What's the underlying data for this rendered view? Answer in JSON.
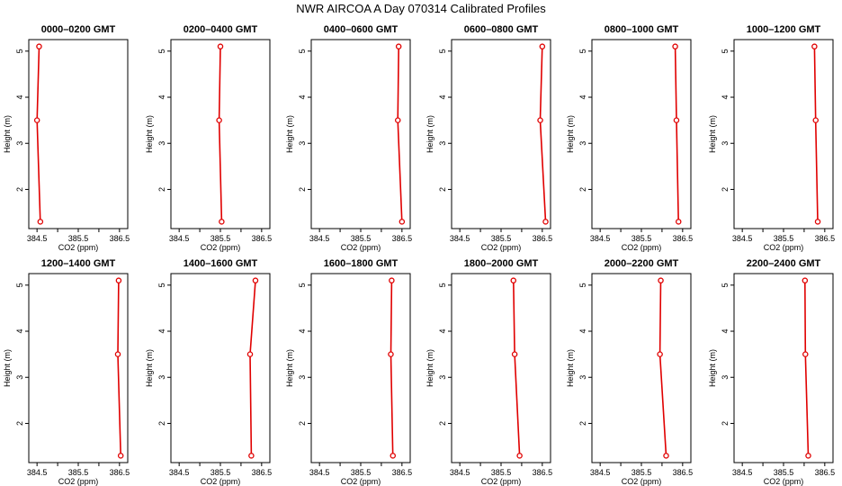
{
  "title": "NWR AIRCOA A  Day 070314  Calibrated Profiles",
  "colors": {
    "profile": "#e00000",
    "axis": "#000000",
    "background": "#ffffff"
  },
  "axes": {
    "xlabel": "CO2 (ppm)",
    "ylabel": "Height (m)",
    "xlim": [
      384.3,
      386.7
    ],
    "ylim": [
      1.15,
      5.25
    ],
    "xticks": [
      384.5,
      385.0,
      385.5,
      386.0,
      386.5
    ],
    "xtick_labels": [
      "384.5",
      "",
      "385.5",
      "",
      "386.5"
    ],
    "yticks": [
      2,
      3,
      4,
      5
    ],
    "ytick_labels": [
      "2",
      "3",
      "4",
      "5"
    ]
  },
  "chart_data": [
    {
      "type": "line",
      "title": "0000–0200 GMT",
      "heights": [
        5.1,
        3.5,
        1.3
      ],
      "values": [
        384.55,
        384.5,
        384.58
      ]
    },
    {
      "type": "line",
      "title": "0200–0400 GMT",
      "heights": [
        5.1,
        3.5,
        1.3
      ],
      "values": [
        385.5,
        385.47,
        385.53
      ]
    },
    {
      "type": "line",
      "title": "0400–0600 GMT",
      "heights": [
        5.1,
        3.5,
        1.3
      ],
      "values": [
        386.42,
        386.4,
        386.5
      ]
    },
    {
      "type": "line",
      "title": "0600–0800 GMT",
      "heights": [
        5.1,
        3.5,
        1.3
      ],
      "values": [
        386.5,
        386.45,
        386.58
      ]
    },
    {
      "type": "line",
      "title": "0800–1000 GMT",
      "heights": [
        5.1,
        3.5,
        1.3
      ],
      "values": [
        386.32,
        386.35,
        386.4
      ]
    },
    {
      "type": "line",
      "title": "1000–1200 GMT",
      "heights": [
        5.1,
        3.5,
        1.3
      ],
      "values": [
        386.25,
        386.28,
        386.33
      ]
    },
    {
      "type": "line",
      "title": "1200–1400 GMT",
      "heights": [
        5.1,
        3.5,
        1.3
      ],
      "values": [
        386.48,
        386.46,
        386.53
      ]
    },
    {
      "type": "line",
      "title": "1400–1600 GMT",
      "heights": [
        5.1,
        3.5,
        1.3
      ],
      "values": [
        386.35,
        386.22,
        386.25
      ]
    },
    {
      "type": "line",
      "title": "1600–1800 GMT",
      "heights": [
        5.1,
        3.5,
        1.3
      ],
      "values": [
        386.25,
        386.23,
        386.28
      ]
    },
    {
      "type": "line",
      "title": "1800–2000 GMT",
      "heights": [
        5.1,
        3.5,
        1.3
      ],
      "values": [
        385.8,
        385.83,
        385.95
      ]
    },
    {
      "type": "line",
      "title": "2000–2200 GMT",
      "heights": [
        5.1,
        3.5,
        1.3
      ],
      "values": [
        385.97,
        385.95,
        386.1
      ]
    },
    {
      "type": "line",
      "title": "2200–2400 GMT",
      "heights": [
        5.1,
        3.5,
        1.3
      ],
      "values": [
        386.02,
        386.03,
        386.1
      ]
    }
  ]
}
